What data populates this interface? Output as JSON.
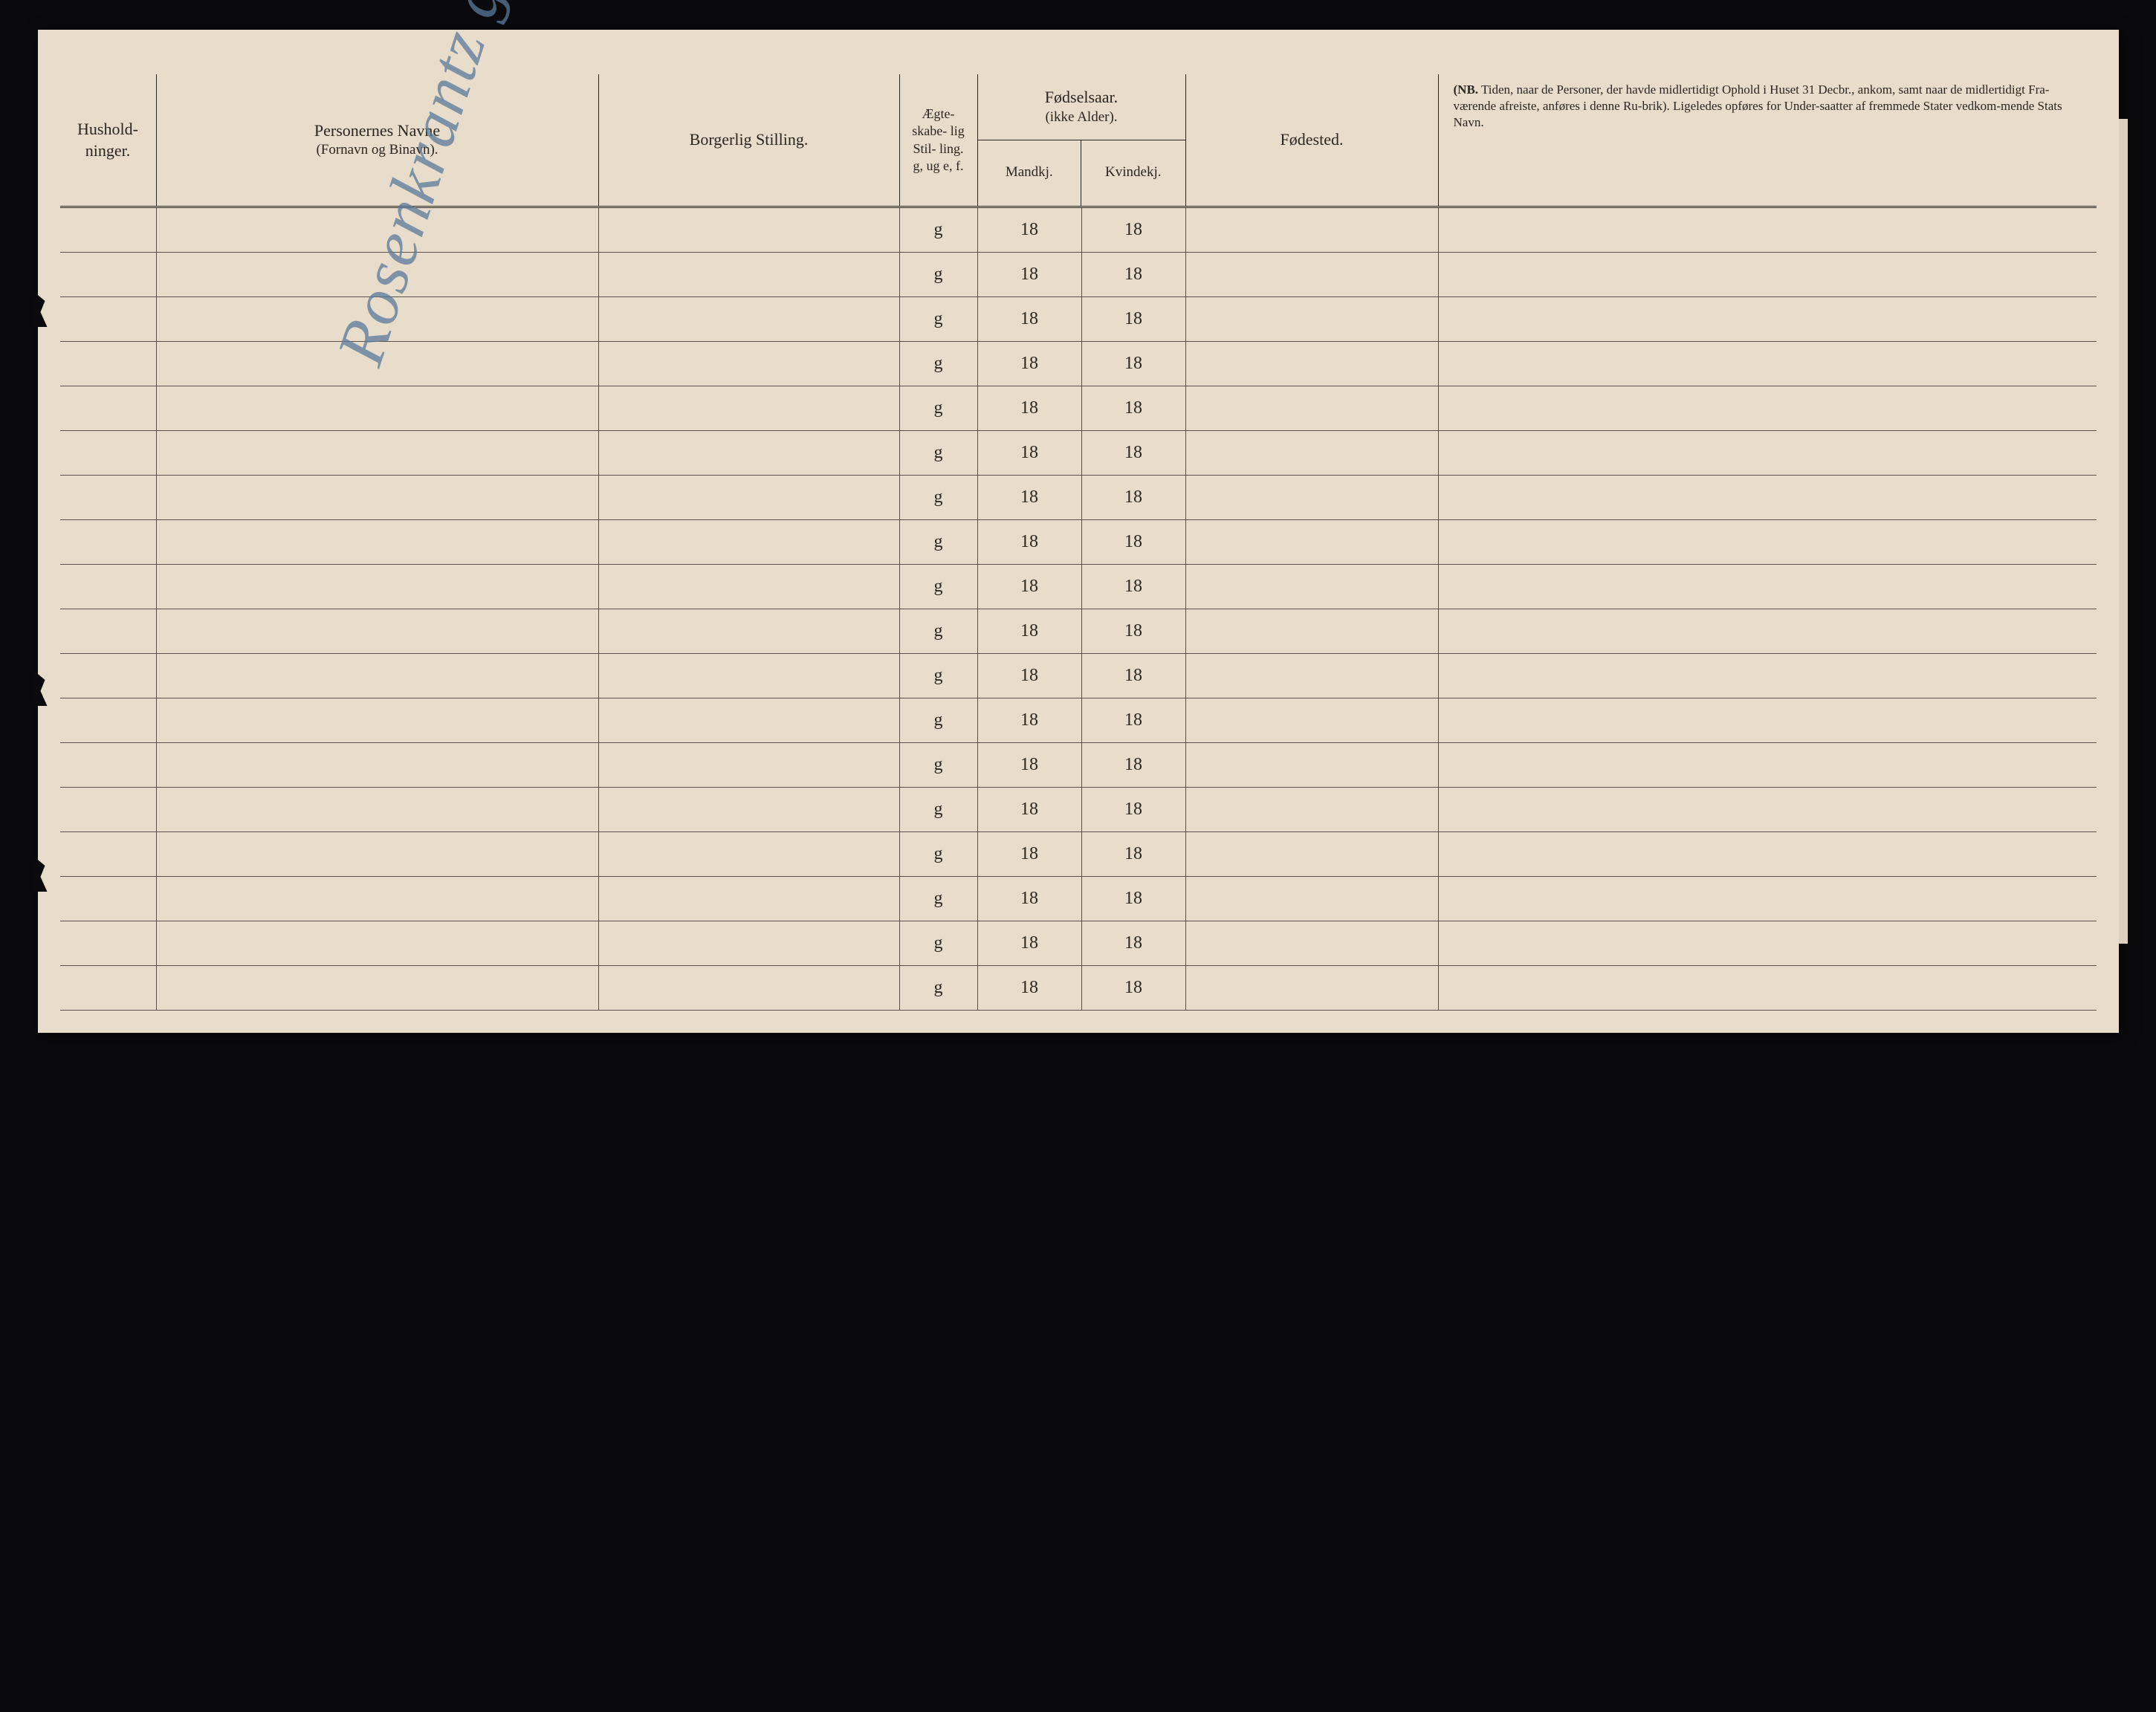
{
  "document": {
    "background_color": "#e8dccb",
    "ink_color": "#2a2620",
    "handwriting_color": "#5a7a9a",
    "line_color": "#5a5248"
  },
  "headers": {
    "hushold": "Hushold-\nninger.",
    "navne_line1": "Personernes Navne",
    "navne_line2": "(Fornavn og Binavn).",
    "stilling": "Borgerlig Stilling.",
    "egte_line1": "Ægte-\nskabe-\nlig\nStil-\nling.",
    "egte_line2": "g, ug\ne, f.",
    "fodsel_line1": "Fødselsaar.",
    "fodsel_line2": "(ikke Alder).",
    "mandkj": "Mandkj.",
    "kvindekj": "Kvindekj.",
    "fodested": "Fødested.",
    "nb_label": "(NB.",
    "nb_text": "Tiden, naar de Personer, der havde midlertidigt Ophold i Huset 31 Decbr., ankom, samt naar de midlertidigt Fra-værende afreiste, anføres i denne Ru-brik). Ligeledes opføres for Under-saatter af fremmede Stater vedkom-mende Stats Navn."
  },
  "handwriting": "Rosenkrantz gaten",
  "rows": [
    {
      "egte": "g",
      "mandkj": "18",
      "kvindekj": "18"
    },
    {
      "egte": "g",
      "mandkj": "18",
      "kvindekj": "18"
    },
    {
      "egte": "g",
      "mandkj": "18",
      "kvindekj": "18"
    },
    {
      "egte": "g",
      "mandkj": "18",
      "kvindekj": "18"
    },
    {
      "egte": "g",
      "mandkj": "18",
      "kvindekj": "18"
    },
    {
      "egte": "g",
      "mandkj": "18",
      "kvindekj": "18"
    },
    {
      "egte": "g",
      "mandkj": "18",
      "kvindekj": "18"
    },
    {
      "egte": "g",
      "mandkj": "18",
      "kvindekj": "18"
    },
    {
      "egte": "g",
      "mandkj": "18",
      "kvindekj": "18"
    },
    {
      "egte": "g",
      "mandkj": "18",
      "kvindekj": "18"
    },
    {
      "egte": "g",
      "mandkj": "18",
      "kvindekj": "18"
    },
    {
      "egte": "g",
      "mandkj": "18",
      "kvindekj": "18"
    },
    {
      "egte": "g",
      "mandkj": "18",
      "kvindekj": "18"
    },
    {
      "egte": "g",
      "mandkj": "18",
      "kvindekj": "18"
    },
    {
      "egte": "g",
      "mandkj": "18",
      "kvindekj": "18"
    },
    {
      "egte": "g",
      "mandkj": "18",
      "kvindekj": "18"
    },
    {
      "egte": "g",
      "mandkj": "18",
      "kvindekj": "18"
    },
    {
      "egte": "g",
      "mandkj": "18",
      "kvindekj": "18"
    }
  ]
}
